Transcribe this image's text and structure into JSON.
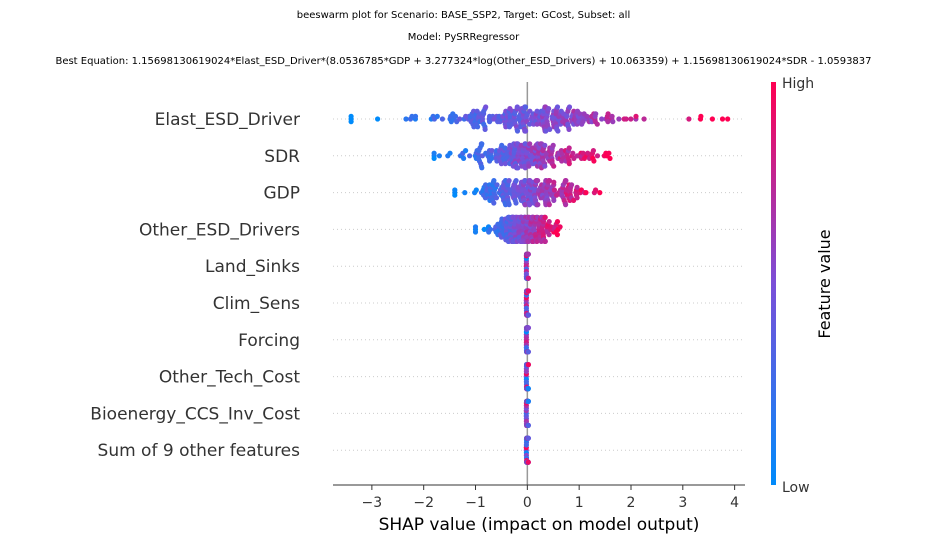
{
  "chart_data": {
    "type": "scatter",
    "title_lines": [
      "beeswarm plot for Scenario: BASE_SSP2, Target: GCost, Subset: all",
      "Model: PySRRegressor",
      "Best Equation: 1.15698130619024*Elast_ESD_Driver*(8.0536785*GDP + 3.277324*log(Other_ESD_Drivers) + 10.063359) + 1.15698130619024*SDR - 1.0593837"
    ],
    "xlabel": "SHAP value (impact on model output)",
    "xlim": [
      -3.75,
      4.2
    ],
    "xticks": [
      -3,
      -2,
      -1,
      0,
      1,
      2,
      3,
      4
    ],
    "xtick_labels": [
      "−3",
      "−2",
      "−1",
      "0",
      "1",
      "2",
      "3",
      "4"
    ],
    "features": [
      {
        "name": "Elast_ESD_Driver",
        "min": -3.4,
        "max": 3.9,
        "spread": 1.1
      },
      {
        "name": "SDR",
        "min": -1.8,
        "max": 1.65,
        "spread": 0.75
      },
      {
        "name": "GDP",
        "min": -1.4,
        "max": 1.45,
        "spread": 0.65
      },
      {
        "name": "Other_ESD_Drivers",
        "min": -1.0,
        "max": 0.7,
        "spread": 0.35
      },
      {
        "name": "Land_Sinks",
        "min": -0.02,
        "max": 0.02,
        "spread": 0.01
      },
      {
        "name": "Clim_Sens",
        "min": -0.02,
        "max": 0.02,
        "spread": 0.01
      },
      {
        "name": "Forcing",
        "min": -0.02,
        "max": 0.02,
        "spread": 0.01
      },
      {
        "name": "Other_Tech_Cost",
        "min": -0.02,
        "max": 0.02,
        "spread": 0.01
      },
      {
        "name": "Bioenergy_CCS_Inv_Cost",
        "min": -0.02,
        "max": 0.02,
        "spread": 0.01
      },
      {
        "name": "Sum of 9 other features",
        "min": -0.02,
        "max": 0.02,
        "spread": 0.01
      }
    ],
    "colorbar": {
      "title": "Feature value",
      "high_label": "High",
      "low_label": "Low",
      "low_color": "#008bfb",
      "mid_color": "#7b4fd8",
      "high_color": "#ff0052"
    },
    "grid": false,
    "legend": "colorbar-right"
  }
}
